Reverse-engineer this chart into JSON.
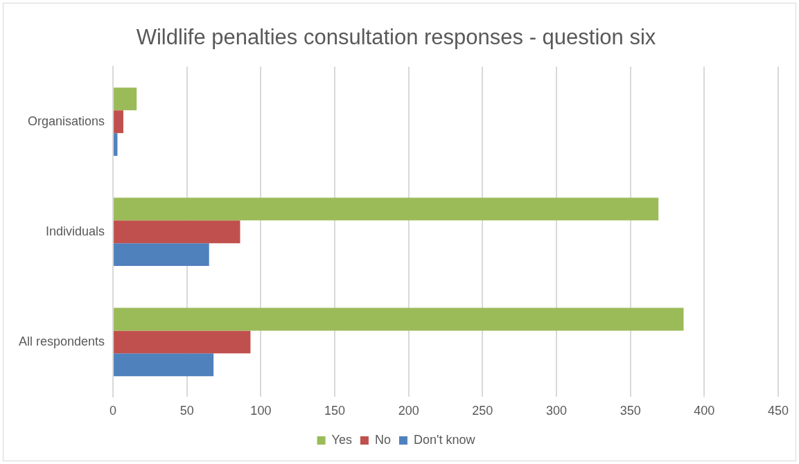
{
  "chart_data": {
    "type": "bar",
    "orientation": "horizontal",
    "title": "Wildlife penalties consultation responses - question six",
    "categories": [
      "Organisations",
      "Individuals",
      "All respondents"
    ],
    "series": [
      {
        "name": "Yes",
        "color": "#9bbb59",
        "values": [
          16,
          369,
          386
        ]
      },
      {
        "name": "No",
        "color": "#c0504d",
        "values": [
          7,
          86,
          93
        ]
      },
      {
        "name": "Don't know",
        "color": "#4f81bd",
        "values": [
          3,
          65,
          68
        ]
      }
    ],
    "xlim": [
      0,
      450
    ],
    "xticks": [
      0,
      50,
      100,
      150,
      200,
      250,
      300,
      350,
      400,
      450
    ],
    "grid": "x",
    "legend": "bottom"
  }
}
